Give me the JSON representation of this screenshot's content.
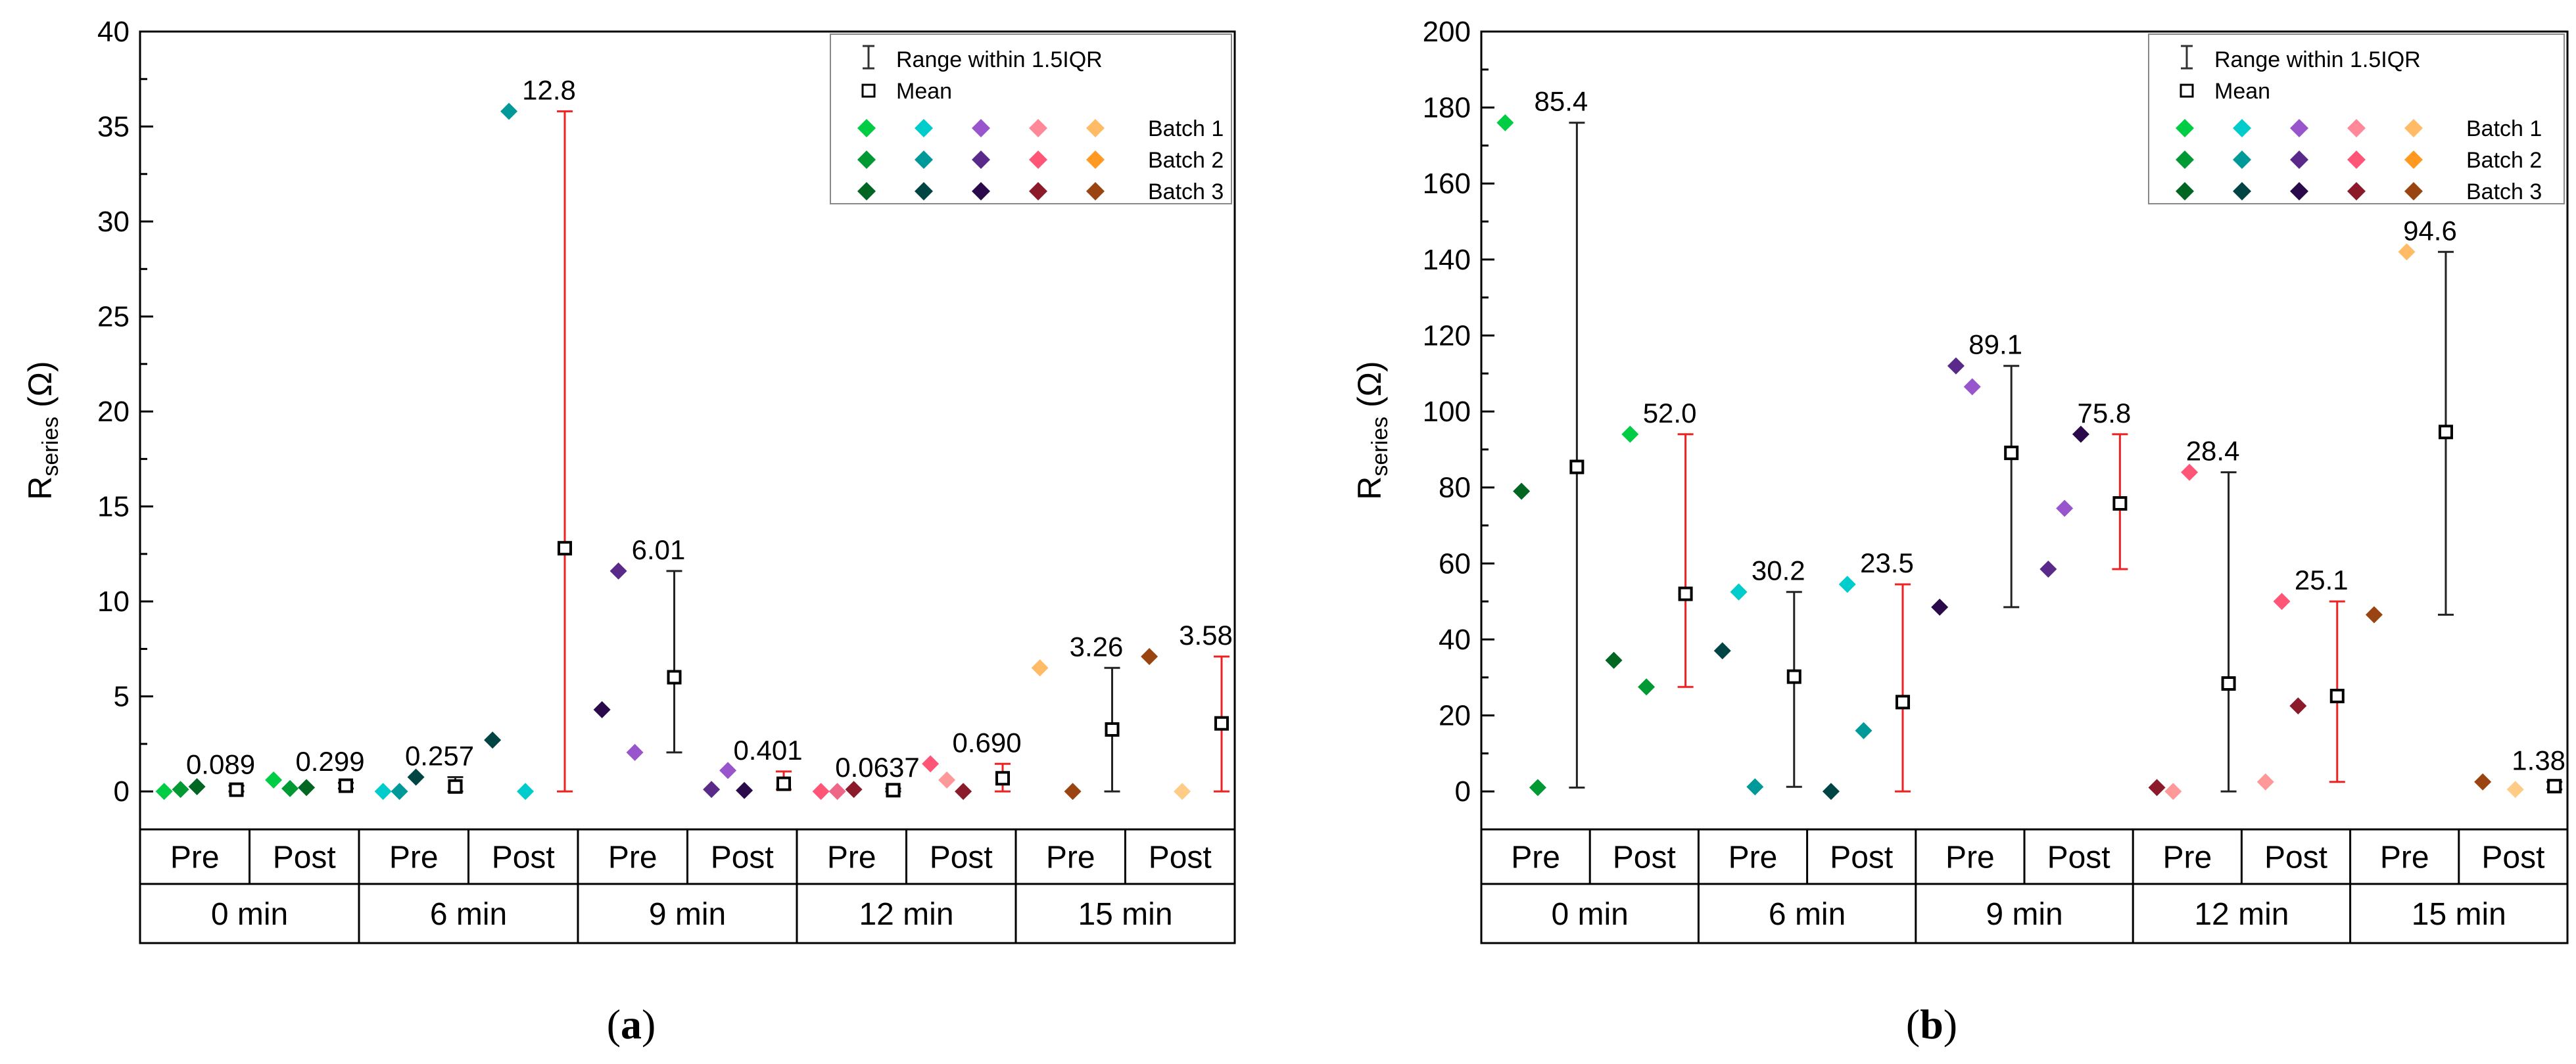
{
  "panels": [
    {
      "caption_letter": "a",
      "caption": "(a)",
      "chart_data": {
        "type": "scatter",
        "ylabel_main": "R",
        "ylabel_sub": "series",
        "ylabel_unit": " (Ω)",
        "ylim": [
          -2,
          40
        ],
        "yticks": [
          0,
          5,
          10,
          15,
          20,
          25,
          30,
          35,
          40
        ],
        "minor_step": 2.5,
        "times": [
          "0 min",
          "6 min",
          "9 min",
          "12 min",
          "15 min"
        ],
        "phases": [
          "Pre",
          "Post"
        ],
        "legend": {
          "range_label": "Range within 1.5IQR",
          "mean_label": "Mean",
          "batches": [
            "Batch 1",
            "Batch 2",
            "Batch 3"
          ]
        },
        "groups": [
          {
            "time": "0 min",
            "phase": "Pre",
            "mean": 0.089,
            "mean_label": "0.089",
            "range": [
              0,
              0.3
            ],
            "whisker": "black",
            "points": [
              {
                "color": "#00cc44",
                "value": 0
              },
              {
                "color": "#009933",
                "value": 0.1
              },
              {
                "color": "#006622",
                "value": 0.25
              }
            ]
          },
          {
            "time": "0 min",
            "phase": "Post",
            "mean": 0.299,
            "mean_label": "0.299",
            "range": [
              0.15,
              0.45
            ],
            "whisker": "black",
            "points": [
              {
                "color": "#00cc44",
                "value": 0.6
              },
              {
                "color": "#009933",
                "value": 0.15
              },
              {
                "color": "#006622",
                "value": 0.2
              }
            ]
          },
          {
            "time": "6 min",
            "phase": "Pre",
            "mean": 0.257,
            "mean_label": "0.257",
            "range": [
              0,
              0.75
            ],
            "whisker": "black",
            "points": [
              {
                "color": "#00cccc",
                "value": 0
              },
              {
                "color": "#009999",
                "value": 0
              },
              {
                "color": "#004444",
                "value": 0.75
              }
            ]
          },
          {
            "time": "6 min",
            "phase": "Post",
            "mean": 12.8,
            "mean_label": "12.8",
            "range": [
              0,
              35.8
            ],
            "whisker": "red",
            "points": [
              {
                "color": "#004444",
                "value": 2.7
              },
              {
                "color": "#009999",
                "value": 35.8
              },
              {
                "color": "#00cccc",
                "value": 0
              }
            ]
          },
          {
            "time": "9 min",
            "phase": "Pre",
            "mean": 6.01,
            "mean_label": "6.01",
            "range": [
              2.05,
              11.6
            ],
            "whisker": "black",
            "points": [
              {
                "color": "#2a0a4a",
                "value": 4.3
              },
              {
                "color": "#5a2a8a",
                "value": 11.6
              },
              {
                "color": "#9955cc",
                "value": 2.05
              }
            ]
          },
          {
            "time": "9 min",
            "phase": "Post",
            "mean": 0.401,
            "mean_label": "0.401",
            "range": [
              0.1,
              1.05
            ],
            "whisker": "red",
            "points": [
              {
                "color": "#5a2a8a",
                "value": 0.1
              },
              {
                "color": "#9955cc",
                "value": 1.1
              },
              {
                "color": "#2a0a4a",
                "value": 0.05
              }
            ]
          },
          {
            "time": "12 min",
            "phase": "Pre",
            "mean": 0.0637,
            "mean_label": "0.0637",
            "range": [
              0,
              0.15
            ],
            "whisker": "black",
            "points": [
              {
                "color": "#ff5577",
                "value": 0
              },
              {
                "color": "#ee6688",
                "value": 0
              },
              {
                "color": "#8b1a2a",
                "value": 0.1
              }
            ]
          },
          {
            "time": "12 min",
            "phase": "Post",
            "mean": 0.69,
            "mean_label": "0.690",
            "range": [
              0,
              1.45
            ],
            "whisker": "red",
            "points": [
              {
                "color": "#ff5577",
                "value": 1.45
              },
              {
                "color": "#ff9999",
                "value": 0.6
              },
              {
                "color": "#8b1a2a",
                "value": 0
              }
            ]
          },
          {
            "time": "15 min",
            "phase": "Pre",
            "mean": 3.26,
            "mean_label": "3.26",
            "range": [
              0,
              6.5
            ],
            "whisker": "black",
            "points": [
              {
                "color": "#ffbb66",
                "value": 6.5
              },
              {
                "color": "#994411",
                "value": 0
              }
            ]
          },
          {
            "time": "15 min",
            "phase": "Post",
            "mean": 3.58,
            "mean_label": "3.58",
            "range": [
              0,
              7.1
            ],
            "whisker": "red",
            "points": [
              {
                "color": "#994411",
                "value": 7.1
              },
              {
                "color": "#ffcc88",
                "value": 0
              }
            ]
          }
        ]
      }
    },
    {
      "caption_letter": "b",
      "caption": "(b)",
      "chart_data": {
        "type": "scatter",
        "ylabel_main": "R",
        "ylabel_sub": "series",
        "ylabel_unit": " (Ω)",
        "ylim": [
          -10,
          200
        ],
        "yticks": [
          0,
          20,
          40,
          60,
          80,
          100,
          120,
          140,
          160,
          180,
          200
        ],
        "minor_step": 10,
        "times": [
          "0 min",
          "6 min",
          "9 min",
          "12 min",
          "15 min"
        ],
        "phases": [
          "Pre",
          "Post"
        ],
        "legend": {
          "range_label": "Range within 1.5IQR",
          "mean_label": "Mean",
          "batches": [
            "Batch 1",
            "Batch 2",
            "Batch 3"
          ]
        },
        "groups": [
          {
            "time": "0 min",
            "phase": "Pre",
            "mean": 85.4,
            "mean_label": "85.4",
            "range": [
              1,
              176
            ],
            "whisker": "black",
            "points": [
              {
                "color": "#00cc44",
                "value": 176
              },
              {
                "color": "#006622",
                "value": 79
              },
              {
                "color": "#009933",
                "value": 1
              }
            ]
          },
          {
            "time": "0 min",
            "phase": "Post",
            "mean": 52.0,
            "mean_label": "52.0",
            "range": [
              27.5,
              94
            ],
            "whisker": "red",
            "points": [
              {
                "color": "#006622",
                "value": 34.5
              },
              {
                "color": "#00cc44",
                "value": 94
              },
              {
                "color": "#009933",
                "value": 27.5
              }
            ]
          },
          {
            "time": "6 min",
            "phase": "Pre",
            "mean": 30.2,
            "mean_label": "30.2",
            "range": [
              1.2,
              52.5
            ],
            "whisker": "black",
            "points": [
              {
                "color": "#004444",
                "value": 37
              },
              {
                "color": "#00cccc",
                "value": 52.5
              },
              {
                "color": "#009999",
                "value": 1.2
              }
            ]
          },
          {
            "time": "6 min",
            "phase": "Post",
            "mean": 23.5,
            "mean_label": "23.5",
            "range": [
              0,
              54.5
            ],
            "whisker": "red",
            "points": [
              {
                "color": "#004444",
                "value": 0
              },
              {
                "color": "#00cccc",
                "value": 54.5
              },
              {
                "color": "#009999",
                "value": 16
              }
            ]
          },
          {
            "time": "9 min",
            "phase": "Pre",
            "mean": 89.1,
            "mean_label": "89.1",
            "range": [
              48.5,
              112
            ],
            "whisker": "black",
            "points": [
              {
                "color": "#2a0a4a",
                "value": 48.5
              },
              {
                "color": "#5a2a8a",
                "value": 112
              },
              {
                "color": "#9955cc",
                "value": 106.5
              }
            ]
          },
          {
            "time": "9 min",
            "phase": "Post",
            "mean": 75.8,
            "mean_label": "75.8",
            "range": [
              58.5,
              94
            ],
            "whisker": "red",
            "points": [
              {
                "color": "#5a2a8a",
                "value": 58.5
              },
              {
                "color": "#9955cc",
                "value": 74.5
              },
              {
                "color": "#2a0a4a",
                "value": 94
              }
            ]
          },
          {
            "time": "12 min",
            "phase": "Pre",
            "mean": 28.4,
            "mean_label": "28.4",
            "range": [
              0,
              84
            ],
            "whisker": "black",
            "points": [
              {
                "color": "#8b1a2a",
                "value": 1
              },
              {
                "color": "#ff9999",
                "value": 0
              },
              {
                "color": "#ff5577",
                "value": 84
              }
            ]
          },
          {
            "time": "12 min",
            "phase": "Post",
            "mean": 25.1,
            "mean_label": "25.1",
            "range": [
              2.5,
              50
            ],
            "whisker": "red",
            "points": [
              {
                "color": "#ff9999",
                "value": 2.5
              },
              {
                "color": "#ff5577",
                "value": 50
              },
              {
                "color": "#8b1a2a",
                "value": 22.5
              }
            ]
          },
          {
            "time": "15 min",
            "phase": "Pre",
            "mean": 94.6,
            "mean_label": "94.6",
            "range": [
              46.5,
              142
            ],
            "whisker": "black",
            "points": [
              {
                "color": "#994411",
                "value": 46.5
              },
              {
                "color": "#ffbb66",
                "value": 142
              }
            ]
          },
          {
            "time": "15 min",
            "phase": "Post",
            "mean": 1.38,
            "mean_label": "1.38",
            "range": [
              0.5,
              2.5
            ],
            "whisker": "black",
            "points": [
              {
                "color": "#994411",
                "value": 2.5
              },
              {
                "color": "#ffcc88",
                "value": 0.5
              }
            ]
          }
        ]
      }
    }
  ],
  "legend_swatches": [
    [
      "#00cc44",
      "#00cccc",
      "#9955cc",
      "#ff8899",
      "#ffbb66"
    ],
    [
      "#009933",
      "#009999",
      "#5a2a8a",
      "#ff5577",
      "#ff9922"
    ],
    [
      "#006622",
      "#004444",
      "#2a0a4a",
      "#8b1a2a",
      "#994411"
    ]
  ],
  "colors": {
    "whisker_black": "#222222",
    "whisker_red": "#ee2222",
    "axis": "#000000"
  }
}
